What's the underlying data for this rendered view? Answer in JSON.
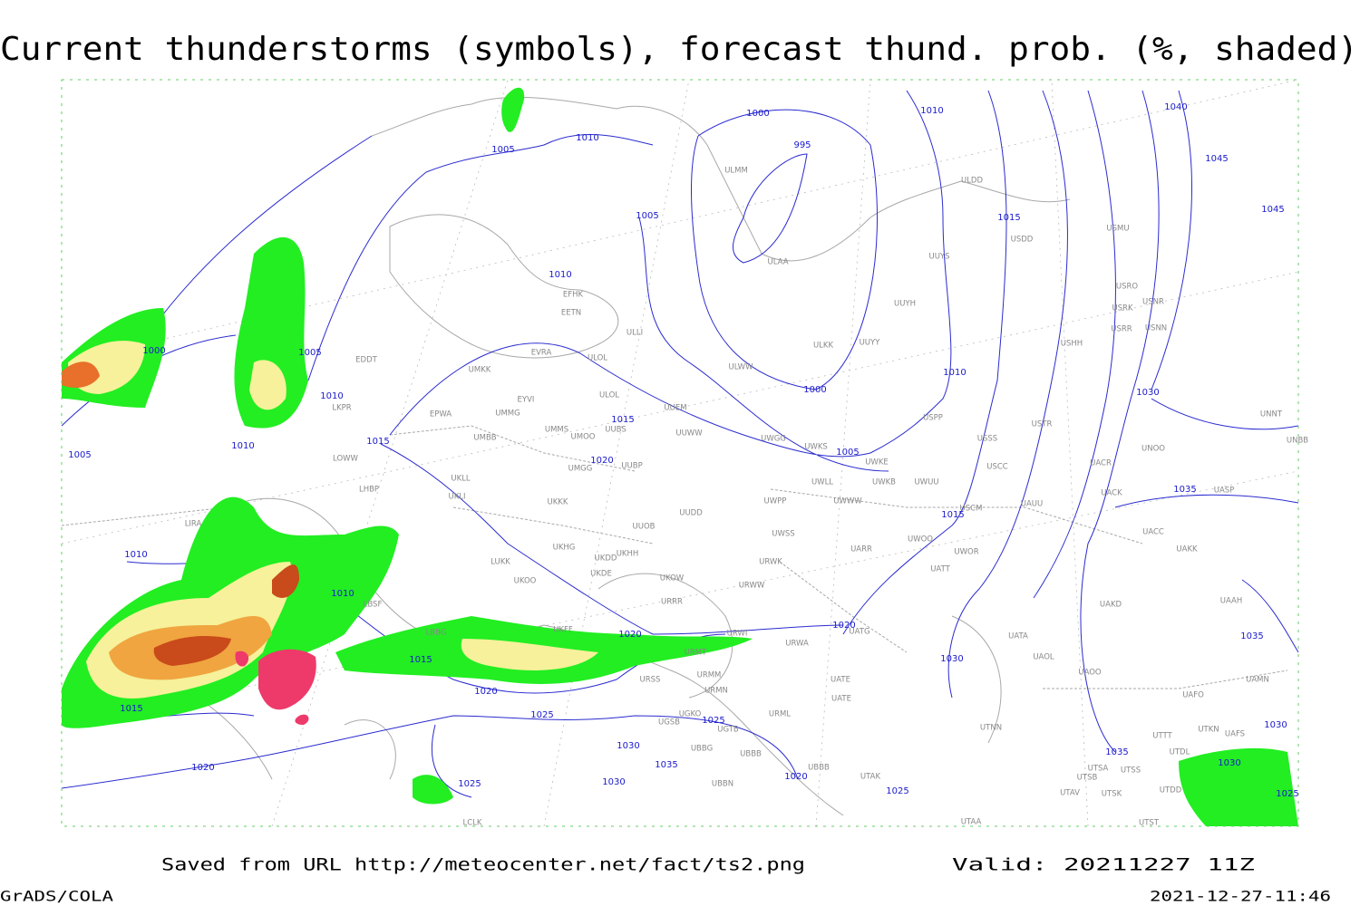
{
  "title": "Current thunderstorms (symbols), forecast thund. prob. (%, shaded)",
  "footer": {
    "source": "Saved from URL  http://meteocenter.net/fact/ts2.png",
    "valid": "Valid: 20211227 11Z",
    "software": "GrADS/COLA",
    "timestamp": "2021-12-27-11:46"
  },
  "isobar_labels": [
    "1005",
    "1010",
    "1000",
    "995",
    "1010",
    "1005",
    "1015",
    "1040",
    "1045",
    "1045",
    "1010",
    "1000",
    "1005",
    "1010",
    "1000",
    "1010",
    "1030",
    "1005",
    "1010",
    "1015",
    "1015",
    "1020",
    "1005",
    "1015",
    "1035",
    "1010",
    "1010",
    "1020",
    "1020",
    "1015",
    "1020",
    "1030",
    "1035",
    "1015",
    "1025",
    "1025",
    "1030",
    "1030",
    "1035",
    "1030",
    "1020",
    "1025",
    "1020",
    "1035",
    "1030",
    "1025",
    "1025"
  ],
  "stations": [
    "ULMM",
    "ULDD",
    "USMU",
    "USDD",
    "ULAA",
    "UUYS",
    "USRO",
    "USRK",
    "USNR",
    "UUYH",
    "EFHK",
    "EETN",
    "ULLI",
    "USRR",
    "USNN",
    "ULKK",
    "UUYY",
    "USHH",
    "EVRA",
    "ULOL",
    "UMKK",
    "ULWW",
    "EDDT",
    "EYVI",
    "ULOL",
    "UUEM",
    "LKPR",
    "EPWA",
    "UMMG",
    "UUWW",
    "UMMS",
    "UMOO",
    "UUBS",
    "UWGG",
    "UWKS",
    "USPP",
    "USTR",
    "USSS",
    "UNNT",
    "UNBB",
    "UNOO",
    "UMBB",
    "UMGG",
    "UUBP",
    "UWKE",
    "USCC",
    "LOWW",
    "UWLL",
    "UWKB",
    "UWUU",
    "UACR",
    "UKLL",
    "UKLI",
    "LHBP",
    "UKKK",
    "UUDD",
    "UWPP",
    "UWWW",
    "USCM",
    "UAUU",
    "UACK",
    "UASP",
    "LIRA",
    "UUOB",
    "UWSS",
    "UARR",
    "UWOO",
    "UWOR",
    "UACC",
    "UAKK",
    "UKHG",
    "UKDD",
    "UKHH",
    "LUKK",
    "URWK",
    "UKDE",
    "UKOW",
    "UATT",
    "UKOO",
    "URWW",
    "LBSF",
    "URRR",
    "UAAH",
    "UAKD",
    "UKFF",
    "URWI",
    "LBBG",
    "URMT",
    "URWA",
    "UATG",
    "UATA",
    "UAOL",
    "URSS",
    "URMM",
    "UATE",
    "UAOO",
    "UAMN",
    "URMN",
    "UATE",
    "UAFO",
    "UGKO",
    "URML",
    "UGSB",
    "UGTB",
    "UTNN",
    "UTTT",
    "UTKN",
    "UAFS",
    "UBBG",
    "UBBB",
    "UTDL",
    "UBBN",
    "UBBB",
    "UTAK",
    "UTSA",
    "UTSS",
    "UTSB",
    "UTAV",
    "UTSK",
    "UTDD",
    "LCLK",
    "UTAA",
    "UTST"
  ]
}
